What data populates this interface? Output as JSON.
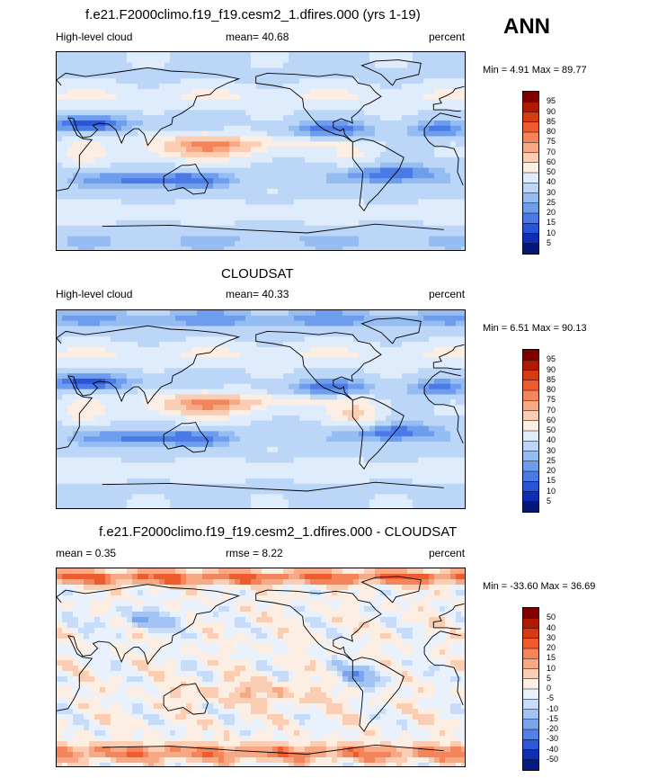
{
  "season": "ANN",
  "chart_data": [
    {
      "type": "heatmap",
      "title": "f.e21.F2000climo.f19_f19.cesm2_1.dfires.000 (yrs 1-19)",
      "variable": "High-level cloud",
      "mean_label": "mean=  40.68",
      "units": "percent",
      "minmax_label": "Min =   4.91 Max =  89.77",
      "min": 4.91,
      "max": 89.77,
      "mean": 40.68,
      "colorbar_ticks": [
        "95",
        "90",
        "85",
        "80",
        "75",
        "70",
        "60",
        "50",
        "40",
        "30",
        "25",
        "20",
        "15",
        "10",
        "5"
      ],
      "colorbar_colors": [
        "#800000",
        "#b01a00",
        "#d63b14",
        "#ee5c2e",
        "#f4845a",
        "#f7a985",
        "#fbcdb3",
        "#fdeee3",
        "#dfecfb",
        "#bcd6f8",
        "#96bdf2",
        "#6f9ded",
        "#4a7ae6",
        "#2755d6",
        "#0c2fb4",
        "#06177c"
      ],
      "field_model": "model"
    },
    {
      "type": "heatmap",
      "title": "CLOUDSAT",
      "variable": "High-level cloud",
      "mean_label": "mean=  40.33",
      "units": "percent",
      "minmax_label": "Min =   6.51 Max =  90.13",
      "min": 6.51,
      "max": 90.13,
      "mean": 40.33,
      "colorbar_ticks": [
        "95",
        "90",
        "85",
        "80",
        "75",
        "70",
        "60",
        "50",
        "40",
        "30",
        "25",
        "20",
        "15",
        "10",
        "5"
      ],
      "colorbar_colors": [
        "#800000",
        "#b01a00",
        "#d63b14",
        "#ee5c2e",
        "#f4845a",
        "#f7a985",
        "#fbcdb3",
        "#fdeee3",
        "#dfecfb",
        "#bcd6f8",
        "#96bdf2",
        "#6f9ded",
        "#4a7ae6",
        "#2755d6",
        "#0c2fb4",
        "#06177c"
      ],
      "field_model": "obs"
    },
    {
      "type": "heatmap",
      "title": "f.e21.F2000climo.f19_f19.cesm2_1.dfires.000 - CLOUDSAT",
      "mean_label": "mean =   0.35",
      "rmse_label": "rmse =   8.22",
      "units": "percent",
      "minmax_label": "Min = -33.60 Max =  36.69",
      "min": -33.6,
      "max": 36.69,
      "mean": 0.35,
      "rmse": 8.22,
      "colorbar_ticks": [
        "50",
        "40",
        "30",
        "20",
        "15",
        "10",
        "5",
        "0",
        "-5",
        "-10",
        "-15",
        "-20",
        "-30",
        "-40",
        "-50"
      ],
      "colorbar_colors": [
        "#800000",
        "#b01a00",
        "#d63b14",
        "#ee5c2e",
        "#f4845a",
        "#f7a985",
        "#fbcdb3",
        "#fdeee3",
        "#e8f1fc",
        "#c6dcf8",
        "#a2c3f3",
        "#7aa4ee",
        "#5380e7",
        "#2d58d6",
        "#0f30b0",
        "#071a80"
      ],
      "field_model": "diff"
    }
  ]
}
